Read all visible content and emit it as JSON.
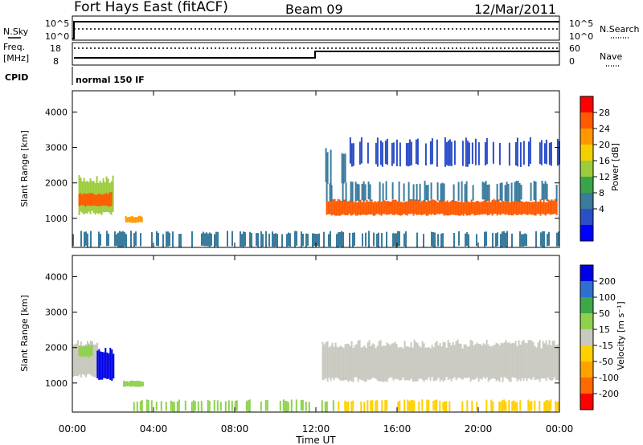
{
  "header": {
    "title": "Fort Hays East (fitACF)",
    "beam": "Beam 09",
    "date": "12/Mar/2011"
  },
  "summary_panels": {
    "nsky_label": "N.Sky",
    "nsky_ticks": [
      "10^5",
      "10^0"
    ],
    "nsearch_label": "N.Search",
    "nsearch_ticks": [
      "10^5",
      "10^0"
    ],
    "freq_label_line1": "Freq.",
    "freq_label_line2": "[MHz]",
    "freq_ticks": [
      "18",
      "8"
    ],
    "nave_label": "Nave",
    "nave_ticks": [
      "60",
      "0"
    ],
    "cpid_label": "CPID",
    "cpid_value": "normal 150 IF"
  },
  "axes": {
    "ylabel": "Slant Range [km]",
    "yticks": [
      "4000",
      "3000",
      "2000",
      "1000"
    ],
    "xlabel": "Time UT",
    "xticks": [
      "00:00",
      "04:00",
      "08:00",
      "12:00",
      "16:00",
      "20:00",
      "00:00"
    ]
  },
  "power_scale": {
    "label": "Power [dB]",
    "ticks": [
      "28",
      "24",
      "20",
      "16",
      "12",
      "8",
      "4"
    ],
    "colors": [
      "#ff0000",
      "#ff5a00",
      "#ff9800",
      "#f4d000",
      "#9ccc3c",
      "#3aa44a",
      "#3b7b9c",
      "#2b4ec8",
      "#0000ff"
    ]
  },
  "velocity_scale": {
    "label": "Velocity [m s⁻¹]",
    "ticks": [
      "200",
      "100",
      "50",
      "15",
      "-15",
      "-50",
      "-100",
      "-200"
    ],
    "colors": [
      "#0000e6",
      "#2f6fd0",
      "#3da84a",
      "#8fd14f",
      "#c9c9c0",
      "#ffd000",
      "#ffa200",
      "#ff6a00",
      "#ff0000"
    ]
  },
  "chart_data": [
    {
      "type": "heatmap",
      "title": "Power",
      "xlabel": "Time UT",
      "ylabel": "Slant Range [km]",
      "x_range_hours": [
        0,
        24
      ],
      "ylim": [
        180,
        4600
      ],
      "colorbar_label": "Power [dB]",
      "zlim": [
        0,
        32
      ],
      "regions": [
        {
          "t0": 0.3,
          "t1": 2.0,
          "r0": 1150,
          "r1": 2100,
          "z": 15
        },
        {
          "t0": 0.3,
          "t1": 1.9,
          "r0": 1350,
          "r1": 1700,
          "z": 28
        },
        {
          "t0": 2.6,
          "t1": 3.4,
          "r0": 880,
          "r1": 1050,
          "z": 24
        },
        {
          "t0": 12.5,
          "t1": 23.9,
          "r0": 1100,
          "r1": 1500,
          "z": 26
        },
        {
          "t0": 12.5,
          "t1": 23.9,
          "r0": 1500,
          "r1": 2000,
          "z": 10
        },
        {
          "t0": 12.3,
          "t1": 13.5,
          "r0": 2000,
          "r1": 2900,
          "z": 8
        },
        {
          "t0": 13.5,
          "t1": 24.0,
          "r0": 2500,
          "r1": 3200,
          "z": 6
        },
        {
          "t0": 0.0,
          "t1": 24.0,
          "r0": 200,
          "r1": 600,
          "z": 8
        }
      ]
    },
    {
      "type": "heatmap",
      "title": "Velocity",
      "xlabel": "Time UT",
      "ylabel": "Slant Range [km]",
      "x_range_hours": [
        0,
        24
      ],
      "ylim": [
        180,
        4600
      ],
      "colorbar_label": "Velocity [m s⁻¹]",
      "zlim": [
        -250,
        250
      ],
      "regions": [
        {
          "t0": 0.0,
          "t1": 1.2,
          "r0": 1200,
          "r1": 2100,
          "z": 0
        },
        {
          "t0": 0.3,
          "t1": 1.0,
          "r0": 1750,
          "r1": 2050,
          "z": 70
        },
        {
          "t0": 1.2,
          "t1": 2.0,
          "r0": 1100,
          "r1": 1900,
          "z": 230
        },
        {
          "t0": 2.5,
          "t1": 3.5,
          "r0": 900,
          "r1": 1050,
          "z": 80
        },
        {
          "t0": 12.3,
          "t1": 24.0,
          "r0": 1100,
          "r1": 2100,
          "z": 0
        },
        {
          "t0": 3.0,
          "t1": 13.0,
          "r0": 200,
          "r1": 500,
          "z": 40
        },
        {
          "t0": 13.0,
          "t1": 24.0,
          "r0": 200,
          "r1": 500,
          "z": -60
        }
      ]
    }
  ]
}
